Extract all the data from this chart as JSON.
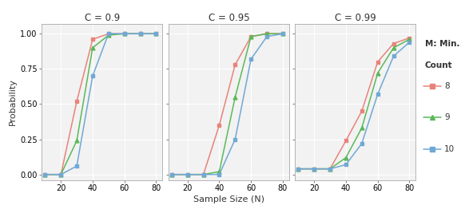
{
  "panels": [
    {
      "title": "C = 0.9",
      "x": [
        10,
        20,
        30,
        40,
        50,
        60,
        70,
        80
      ],
      "y_m8": [
        0.0,
        0.0,
        0.52,
        0.96,
        1.0,
        1.0,
        1.0,
        1.0
      ],
      "y_m9": [
        0.0,
        0.0,
        0.24,
        0.9,
        0.99,
        1.0,
        1.0,
        1.0
      ],
      "y_m10": [
        0.0,
        0.0,
        0.06,
        0.7,
        1.0,
        1.0,
        1.0,
        1.0
      ]
    },
    {
      "title": "C = 0.95",
      "x": [
        10,
        20,
        30,
        40,
        50,
        60,
        70,
        80
      ],
      "y_m8": [
        0.0,
        0.0,
        0.0,
        0.35,
        0.78,
        0.98,
        1.0,
        1.0
      ],
      "y_m9": [
        0.0,
        0.0,
        0.0,
        0.02,
        0.55,
        0.98,
        1.0,
        1.0
      ],
      "y_m10": [
        0.0,
        0.0,
        0.0,
        0.0,
        0.25,
        0.82,
        0.98,
        1.0
      ]
    },
    {
      "title": "C = 0.99",
      "x": [
        10,
        20,
        30,
        40,
        50,
        60,
        70,
        80
      ],
      "y_m8": [
        0.04,
        0.04,
        0.04,
        0.24,
        0.45,
        0.8,
        0.93,
        0.97
      ],
      "y_m9": [
        0.04,
        0.04,
        0.04,
        0.12,
        0.33,
        0.72,
        0.9,
        0.96
      ],
      "y_m10": [
        0.04,
        0.04,
        0.04,
        0.07,
        0.22,
        0.57,
        0.84,
        0.94
      ]
    }
  ],
  "colors": {
    "m8": "#E8837A",
    "m9": "#5BB85A",
    "m10": "#6FA8D5"
  },
  "markers": {
    "m8": "s",
    "m9": "^",
    "m10": "s"
  },
  "legend_labels": {
    "m8": "8",
    "m9": "9",
    "m10": "10"
  },
  "xlabel": "Sample Size (N)",
  "ylabel": "Probability",
  "legend_title_line1": "M: Min.",
  "legend_title_line2": "Count",
  "xticks": [
    20,
    40,
    60,
    80
  ],
  "yticks": [
    0.0,
    0.25,
    0.5,
    0.75,
    1.0
  ],
  "ytick_labels": [
    "0.00",
    "0.25",
    "0.50",
    "0.75",
    "1.00"
  ],
  "xlim": [
    8,
    84
  ],
  "ylim": [
    -0.04,
    1.07
  ],
  "bg_color": "#F2F2F2",
  "fig_bg": "#FFFFFF",
  "grid_color": "#FFFFFF",
  "figsize": [
    5.82,
    2.72
  ],
  "dpi": 100,
  "linewidth": 1.1,
  "markersize": 3.5
}
